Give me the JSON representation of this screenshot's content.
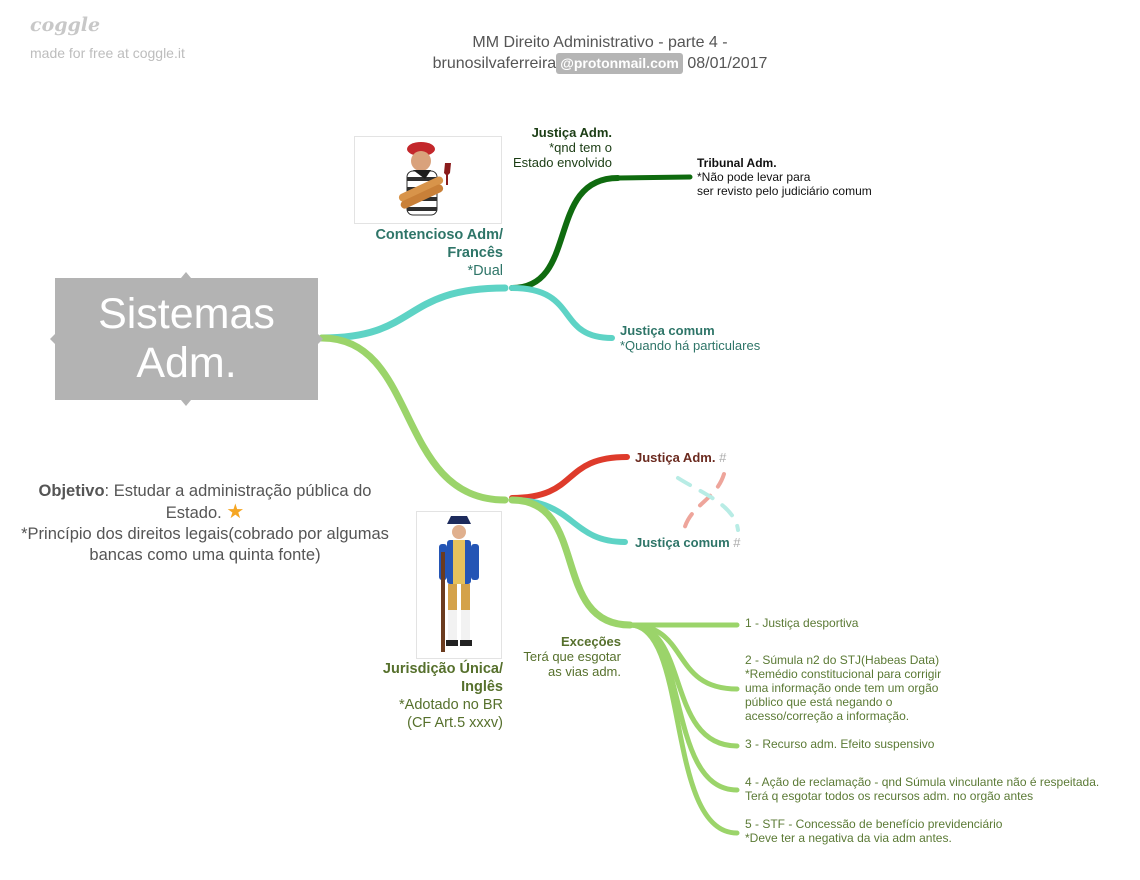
{
  "brand": {
    "logo": "coggle",
    "tagline": "made for free at coggle.it"
  },
  "header": {
    "title_line1": "MM Direito Administrativo - parte 4 -",
    "user": "brunosilvaferreira",
    "email_domain": "@protonmail.com",
    "date": "08/01/2017"
  },
  "root": {
    "label": "Sistemas\nAdm."
  },
  "objective": {
    "bold": "Objetivo",
    "text": ": Estudar a administração pública do Estado.",
    "star_icon": "star-icon",
    "note": "*Princípio dos direitos legais(cobrado por algumas bancas como uma quinta fonte)"
  },
  "branches": {
    "contencioso": {
      "title": "Contencioso Adm/\nFrancês",
      "note": "*Dual",
      "image_icon": "french-man-with-baguettes-image",
      "justica_adm": {
        "title": "Justiça Adm.",
        "note": "*qnd tem o\nEstado envolvido"
      },
      "tribunal": {
        "title": "Tribunal Adm.",
        "note": "*Não pode levar para\nser revisto pelo judiciário comum"
      },
      "justica_comum": {
        "title": "Justiça comum",
        "note": "*Quando há particulares"
      }
    },
    "unica": {
      "title": "Jurisdição Única/\nInglês",
      "note": "*Adotado no BR\n(CF Art.5 xxxv)",
      "image_icon": "english-colonial-soldier-image",
      "justica_adm": {
        "title": "Justiça Adm.",
        "hash": "#"
      },
      "justica_comum": {
        "title": "Justiça comum",
        "hash": "#"
      },
      "excecoes": {
        "title": "Exceções",
        "note": "Terá que esgotar\nas vias adm.",
        "items": [
          "1 - Justiça desportiva",
          "2 - Súmula n2 do STJ(Habeas Data)\n*Remédio constitucional para corrigir\numa informação onde tem um orgão\npúblico que está negando o\nacesso/correção a informação.",
          "3 - Recurso adm. Efeito suspensivo",
          "4 - Ação de reclamação - qnd Súmula vinculante não é respeitada.\nTerá q esgotar todos os recursos adm. no orgão antes",
          "5 - STF - Concessão de benefício previdenciário\n*Deve ter a negativa da via adm antes."
        ]
      }
    }
  },
  "colors": {
    "teal": "#5ed3c5",
    "dark_green": "#0f6b0f",
    "light_green": "#9bd46a",
    "red": "#de3b2b",
    "root_gray": "#b3b3b3"
  }
}
